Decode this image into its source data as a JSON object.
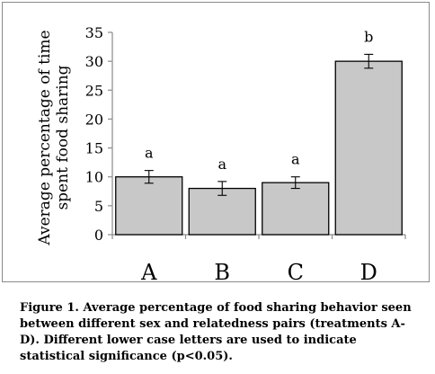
{
  "chart_data": {
    "type": "bar",
    "categories": [
      "A",
      "B",
      "C",
      "D"
    ],
    "values": [
      10,
      8,
      9,
      30
    ],
    "errors": [
      1.1,
      1.2,
      1.0,
      1.2
    ],
    "significance_letters": [
      "a",
      "a",
      "a",
      "b"
    ],
    "ylabel_line1": "Average percentage of time",
    "ylabel_line2": "spent food sharing",
    "xlabel": "",
    "ylim": [
      0,
      35
    ],
    "yticks": [
      0,
      5,
      10,
      15,
      20,
      25,
      30,
      35
    ],
    "grid": false,
    "legend": "none",
    "bar_color": "#c8c8c8"
  },
  "caption": {
    "label": "Figure 1.",
    "text": " Average percentage of food sharing behavior seen between different sex and relatedness pairs (treatments A-D). Different lower case letters are used to indicate statistical significance (p<0.05)."
  }
}
